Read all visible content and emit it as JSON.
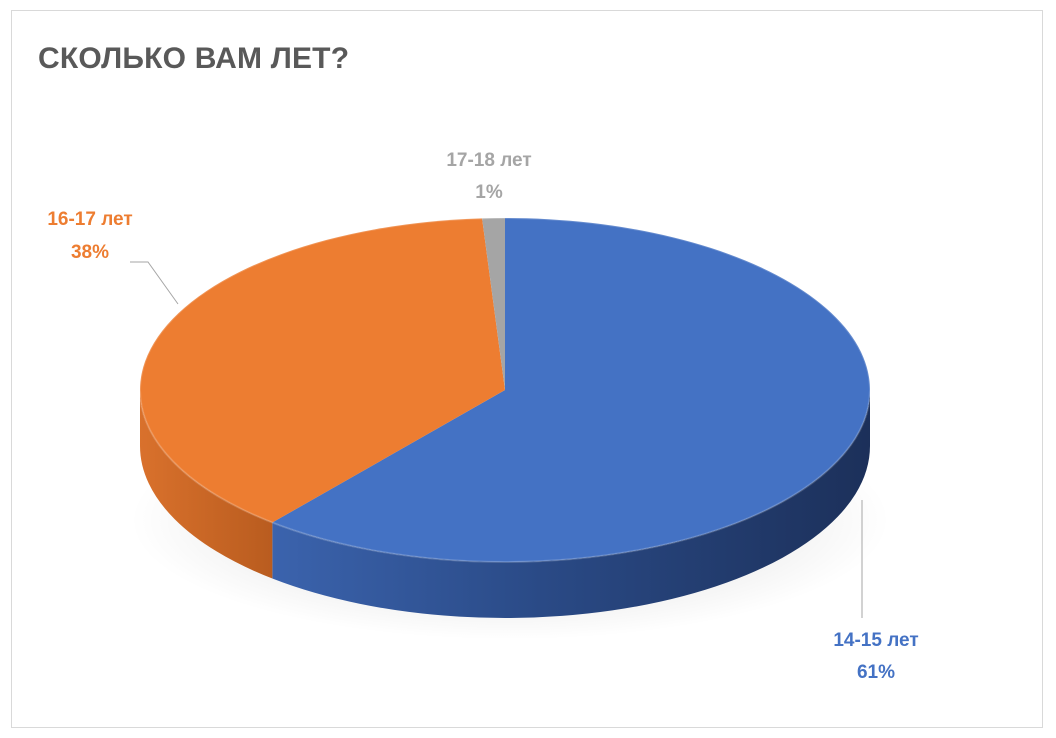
{
  "chart_data": {
    "type": "pie",
    "title": "СКОЛЬКО ВАМ ЛЕТ?",
    "slices": [
      {
        "label": "14-15 лет",
        "value": 61,
        "percent_label": "61%",
        "color": "#4472c4"
      },
      {
        "label": "16-17 лет",
        "value": 38,
        "percent_label": "38%",
        "color": "#ed7d31"
      },
      {
        "label": "17-18 лет",
        "value": 1,
        "percent_label": "1%",
        "color": "#a5a5a5"
      }
    ],
    "legend": "none",
    "style": "3d",
    "data_labels": "outside"
  }
}
